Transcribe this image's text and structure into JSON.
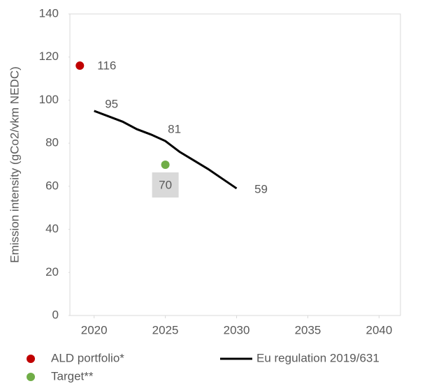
{
  "chart_data": {
    "type": "line",
    "y_label": "Emission intensity (gCo2/vkm NEDC)",
    "xlim": [
      2018.3,
      2041.5
    ],
    "xticks": [
      2020,
      2025,
      2030,
      2035,
      2040
    ],
    "ylim": [
      0,
      140
    ],
    "yticks": [
      0,
      20,
      40,
      60,
      80,
      100,
      120,
      140
    ],
    "series": [
      {
        "name": "ALD portfolio*",
        "type": "scatter",
        "color": "#c00000",
        "x": [
          2019
        ],
        "values": [
          116
        ],
        "value_labels": [
          "116"
        ]
      },
      {
        "name": "Eu regulation 2019/631",
        "type": "line",
        "color": "#000000",
        "x": [
          2020,
          2021,
          2022,
          2023,
          2024,
          2025,
          2026,
          2027,
          2028,
          2029,
          2030
        ],
        "values": [
          95,
          92.5,
          90,
          86.5,
          84,
          81,
          76,
          72,
          68,
          63.5,
          59
        ],
        "value_labels": [
          "95",
          null,
          null,
          null,
          null,
          "81",
          null,
          null,
          null,
          null,
          "59"
        ]
      },
      {
        "name": "Target**",
        "type": "scatter",
        "color": "#70ad47",
        "x": [
          2025
        ],
        "values": [
          70
        ],
        "value_labels": [
          "70"
        ]
      }
    ]
  }
}
